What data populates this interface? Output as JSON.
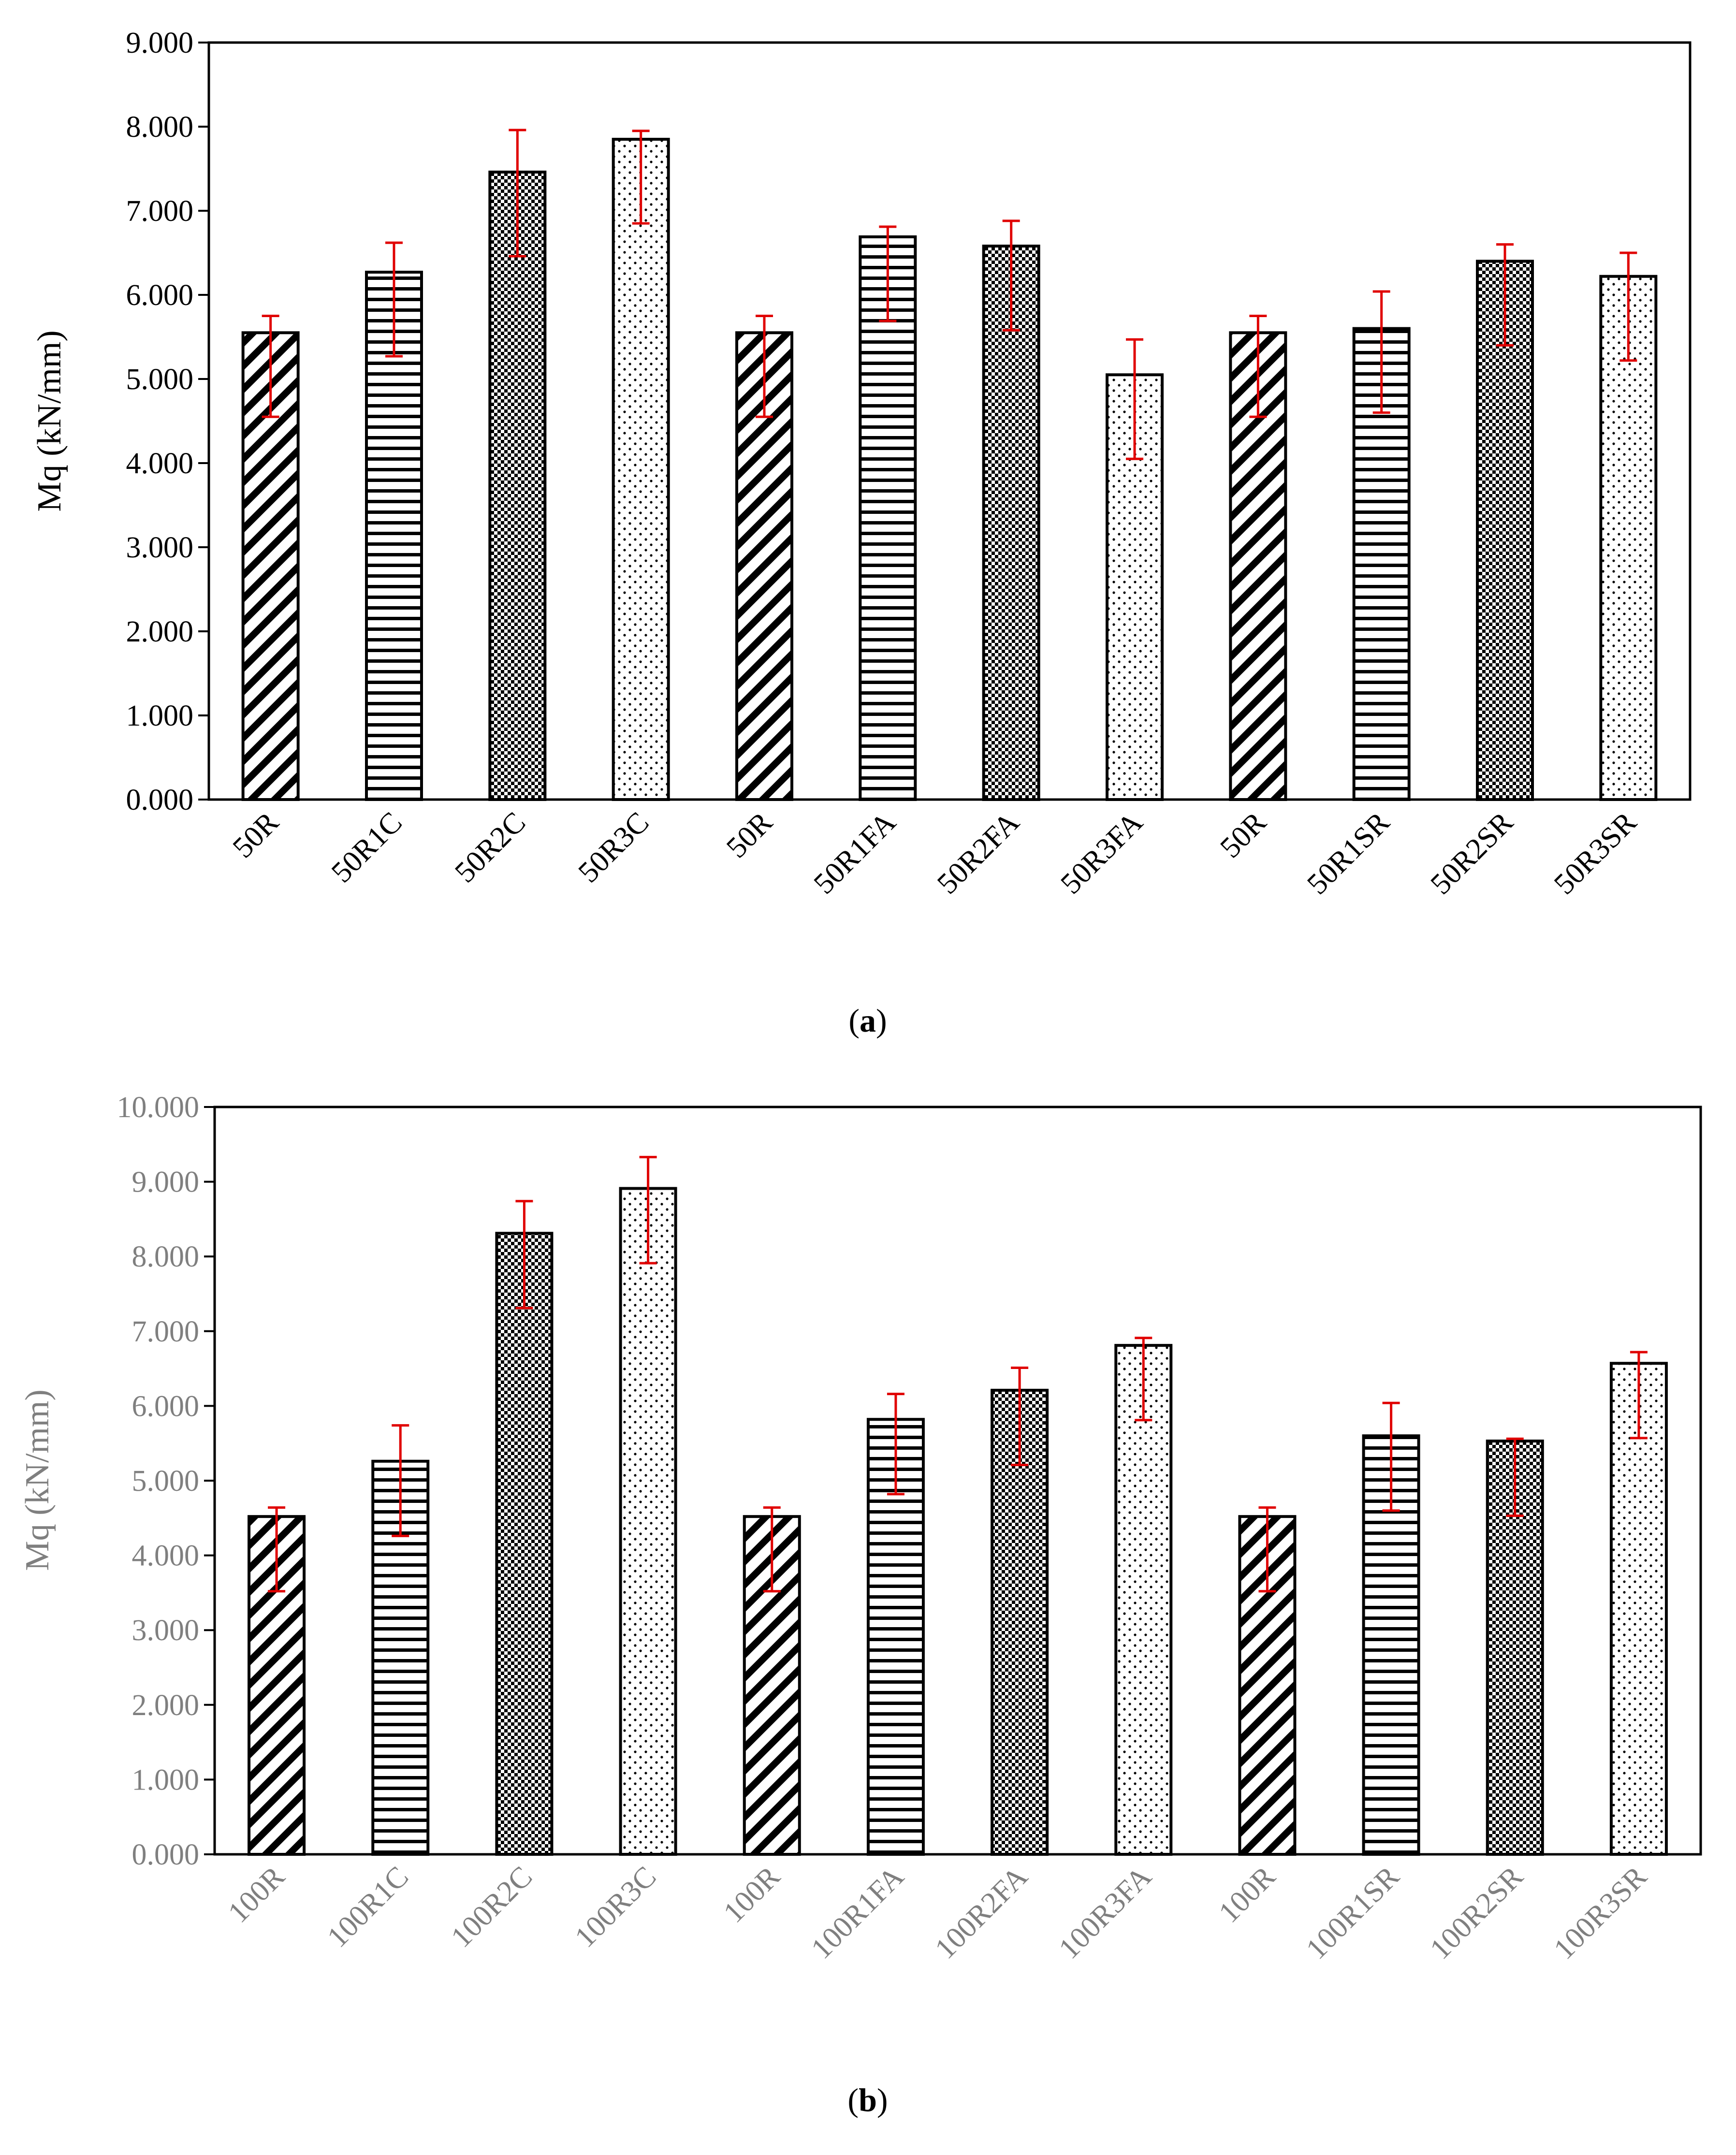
{
  "chart_data": [
    {
      "type": "bar",
      "panel": "a",
      "caption": {
        "open": "(",
        "letter": "a",
        "close": ")"
      },
      "ylabel": "Mq (kN/mm)",
      "xlabel": "",
      "ylim": [
        0,
        9
      ],
      "yticks": [
        "0.000",
        "1.000",
        "2.000",
        "3.000",
        "4.000",
        "5.000",
        "6.000",
        "7.000",
        "8.000",
        "9.000"
      ],
      "tick_color": "#000000",
      "categories": [
        "50R",
        "50R1C",
        "50R2C",
        "50R3C",
        "50R",
        "50R1FA",
        "50R2FA",
        "50R3FA",
        "50R",
        "50R1SR",
        "50R2SR",
        "50R3SR"
      ],
      "values": [
        5.55,
        6.27,
        7.46,
        7.85,
        5.55,
        6.69,
        6.58,
        5.05,
        5.55,
        5.6,
        6.4,
        6.22
      ],
      "error": [
        1.0,
        1.0,
        1.0,
        1.0,
        1.0,
        1.0,
        1.0,
        1.0,
        1.0,
        1.0,
        1.0,
        1.0
      ],
      "error_upper": [
        0.2,
        0.35,
        0.5,
        0.1,
        0.2,
        0.12,
        0.3,
        0.42,
        0.2,
        0.44,
        0.2,
        0.28
      ],
      "patterns": [
        "diag",
        "hlines",
        "checker",
        "dots",
        "diag",
        "hlines",
        "checker",
        "dots",
        "diag",
        "hlines",
        "checker",
        "dots"
      ],
      "grid": false
    },
    {
      "type": "bar",
      "panel": "b",
      "caption": {
        "open": "(",
        "letter": "b",
        "close": ")"
      },
      "ylabel": "Mq (kN/mm)",
      "xlabel": "",
      "ylim": [
        0,
        10
      ],
      "yticks": [
        "0.000",
        "1.000",
        "2.000",
        "3.000",
        "4.000",
        "5.000",
        "6.000",
        "7.000",
        "8.000",
        "9.000",
        "10.000"
      ],
      "tick_color": "#7f7f7f",
      "categories": [
        "100R",
        "100R1C",
        "100R2C",
        "100R3C",
        "100R",
        "100R1FA",
        "100R2FA",
        "100R3FA",
        "100R",
        "100R1SR",
        "100R2SR",
        "100R3SR"
      ],
      "values": [
        4.52,
        5.26,
        8.31,
        8.91,
        4.52,
        5.82,
        6.21,
        6.81,
        4.52,
        5.6,
        5.53,
        6.57
      ],
      "error": [
        1.0,
        1.0,
        1.0,
        1.0,
        1.0,
        1.0,
        1.0,
        1.0,
        1.0,
        1.0,
        1.0,
        1.0
      ],
      "error_upper": [
        0.12,
        0.48,
        0.43,
        0.42,
        0.12,
        0.34,
        0.3,
        0.1,
        0.12,
        0.44,
        0.03,
        0.15
      ],
      "patterns": [
        "diag",
        "hlines",
        "checker",
        "dots",
        "diag",
        "hlines",
        "checker",
        "dots",
        "diag",
        "hlines",
        "checker",
        "dots"
      ],
      "grid": false
    }
  ],
  "colors": {
    "error_bar": "#e00000",
    "bar_outline": "#000000",
    "axis": "#000000"
  }
}
